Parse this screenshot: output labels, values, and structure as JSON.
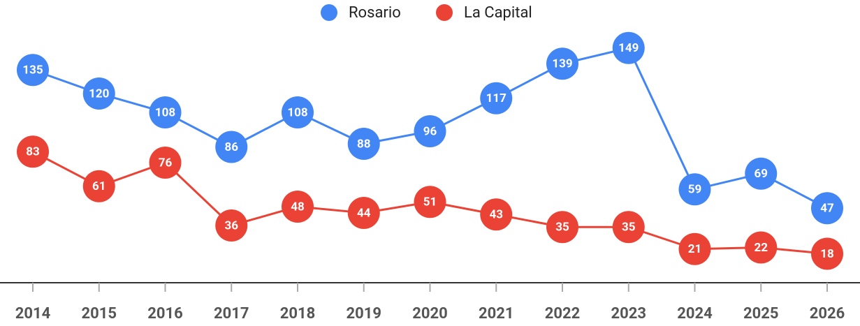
{
  "chart_data": {
    "type": "line",
    "categories": [
      "2014",
      "2015",
      "2016",
      "2017",
      "2018",
      "2019",
      "2020",
      "2021",
      "2022",
      "2023",
      "2024",
      "2025",
      "2026"
    ],
    "series": [
      {
        "name": "Rosario",
        "color": "#4285f4",
        "values": [
          135,
          120,
          108,
          86,
          108,
          88,
          96,
          117,
          139,
          149,
          59,
          69,
          47
        ]
      },
      {
        "name": "La Capital",
        "color": "#ea4335",
        "values": [
          83,
          61,
          76,
          36,
          48,
          44,
          51,
          43,
          35,
          35,
          21,
          22,
          18
        ]
      }
    ],
    "ylim": [
      0,
      160
    ],
    "legend": "top"
  }
}
